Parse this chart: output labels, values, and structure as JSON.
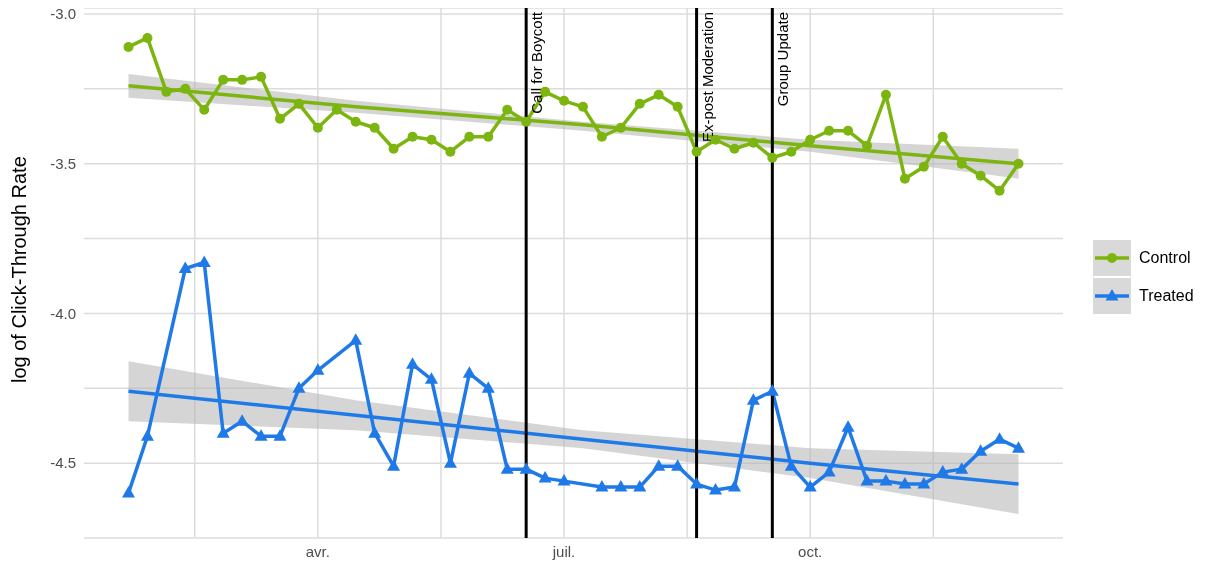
{
  "chart_data": {
    "type": "line",
    "ylabel": "log of Click-Through Rate",
    "categories": [
      null,
      null,
      null,
      null,
      null,
      null,
      null,
      null,
      null,
      null,
      "avr.",
      null,
      null,
      null,
      null,
      null,
      null,
      null,
      null,
      null,
      null,
      null,
      null,
      "juil.",
      null,
      null,
      null,
      null,
      null,
      null,
      null,
      null,
      null,
      null,
      null,
      null,
      "oct.",
      null,
      null,
      null,
      null,
      null,
      null,
      null,
      null,
      null,
      null,
      null
    ],
    "series": [
      {
        "name": "Control",
        "color": "#7cb50f",
        "marker": "circle",
        "values": [
          -3.11,
          -3.08,
          -3.26,
          -3.25,
          -3.32,
          -3.22,
          -3.22,
          -3.21,
          -3.35,
          -3.3,
          -3.38,
          -3.32,
          -3.36,
          -3.38,
          -3.45,
          -3.41,
          -3.42,
          -3.46,
          -3.41,
          -3.41,
          -3.32,
          -3.36,
          -3.26,
          -3.29,
          -3.31,
          -3.41,
          -3.38,
          -3.3,
          -3.27,
          -3.31,
          -3.46,
          -3.42,
          -3.45,
          -3.43,
          -3.48,
          -3.46,
          -3.42,
          -3.39,
          -3.39,
          -3.44,
          -3.27,
          -3.55,
          -3.51,
          -3.41,
          -3.5,
          -3.54,
          -3.59,
          -3.5
        ]
      },
      {
        "name": "Treated",
        "color": "#1f7ae8",
        "marker": "triangle",
        "values": [
          -4.6,
          -4.41,
          null,
          -3.85,
          -3.83,
          -4.4,
          -4.36,
          -4.41,
          -4.41,
          -4.25,
          -4.19,
          null,
          -4.09,
          -4.4,
          -4.51,
          -4.17,
          -4.22,
          -4.5,
          -4.2,
          -4.25,
          -4.52,
          -4.52,
          -4.55,
          -4.56,
          null,
          -4.58,
          -4.58,
          -4.58,
          -4.51,
          -4.51,
          -4.57,
          -4.59,
          -4.58,
          -4.29,
          -4.26,
          -4.51,
          -4.58,
          -4.53,
          -4.38,
          -4.56,
          -4.56,
          -4.57,
          -4.57,
          -4.53,
          -4.52,
          -4.46,
          -4.42,
          -4.45
        ]
      },
      {
        "type": "line",
        "color": "#7cb50f",
        "marker": "none",
        "values": [
          -3.24,
          null,
          null,
          null,
          null,
          null,
          null,
          null,
          null,
          null,
          null,
          null,
          -3.31,
          null,
          null,
          null,
          null,
          null,
          null,
          null,
          null,
          null,
          null,
          null,
          -3.37,
          null,
          null,
          null,
          null,
          null,
          null,
          null,
          null,
          null,
          null,
          null,
          -3.44,
          null,
          null,
          null,
          null,
          null,
          null,
          null,
          null,
          null,
          null,
          -3.5
        ],
        "lower": [
          -3.28,
          null,
          null,
          null,
          null,
          null,
          null,
          null,
          null,
          null,
          null,
          null,
          -3.33,
          null,
          null,
          null,
          null,
          null,
          null,
          null,
          null,
          null,
          null,
          null,
          -3.39,
          null,
          null,
          null,
          null,
          null,
          null,
          null,
          null,
          null,
          null,
          null,
          -3.46,
          null,
          null,
          null,
          null,
          null,
          null,
          null,
          null,
          null,
          null,
          -3.55
        ],
        "upper": [
          -3.2,
          null,
          null,
          null,
          null,
          null,
          null,
          null,
          null,
          null,
          null,
          null,
          -3.29,
          null,
          null,
          null,
          null,
          null,
          null,
          null,
          null,
          null,
          null,
          null,
          -3.36,
          null,
          null,
          null,
          null,
          null,
          null,
          null,
          null,
          null,
          null,
          null,
          -3.42,
          null,
          null,
          null,
          null,
          null,
          null,
          null,
          null,
          null,
          null,
          -3.45
        ]
      },
      {
        "type": "line",
        "color": "#1f7ae8",
        "marker": "none",
        "values": [
          -4.26,
          null,
          null,
          null,
          null,
          null,
          null,
          null,
          null,
          null,
          null,
          null,
          -4.34,
          null,
          null,
          null,
          null,
          null,
          null,
          null,
          null,
          null,
          null,
          null,
          -4.42,
          null,
          null,
          null,
          null,
          null,
          null,
          null,
          null,
          null,
          null,
          null,
          -4.5,
          null,
          null,
          null,
          null,
          null,
          null,
          null,
          null,
          null,
          null,
          -4.57
        ],
        "lower": [
          -4.36,
          null,
          null,
          null,
          null,
          null,
          null,
          null,
          null,
          null,
          null,
          null,
          -4.39,
          null,
          null,
          null,
          null,
          null,
          null,
          null,
          null,
          null,
          null,
          null,
          -4.45,
          null,
          null,
          null,
          null,
          null,
          null,
          null,
          null,
          null,
          null,
          null,
          -4.55,
          null,
          null,
          null,
          null,
          null,
          null,
          null,
          null,
          null,
          null,
          -4.67
        ],
        "upper": [
          -4.16,
          null,
          null,
          null,
          null,
          null,
          null,
          null,
          null,
          null,
          null,
          null,
          -4.29,
          null,
          null,
          null,
          null,
          null,
          null,
          null,
          null,
          null,
          null,
          null,
          -4.39,
          null,
          null,
          null,
          null,
          null,
          null,
          null,
          null,
          null,
          null,
          null,
          -4.45,
          null,
          null,
          null,
          null,
          null,
          null,
          null,
          null,
          null,
          null,
          -4.47
        ]
      }
    ],
    "ylim": [
      -4.75,
      -2.98
    ],
    "yticks": [
      {
        "value": -4.5,
        "label": "-4.5"
      },
      {
        "value": -4.25,
        "label": null
      },
      {
        "value": -4,
        "label": "-4.0"
      },
      {
        "value": -3.75,
        "label": null
      },
      {
        "value": -3.5,
        "label": "-3.5"
      },
      {
        "value": -3.25,
        "label": null
      },
      {
        "value": -3,
        "label": "-3.0"
      }
    ],
    "annotations": [
      "Call for Boycott",
      "Ex-post Moderation",
      "Group Update"
    ],
    "grid": true,
    "legend": "right",
    "line_style": "solid"
  }
}
